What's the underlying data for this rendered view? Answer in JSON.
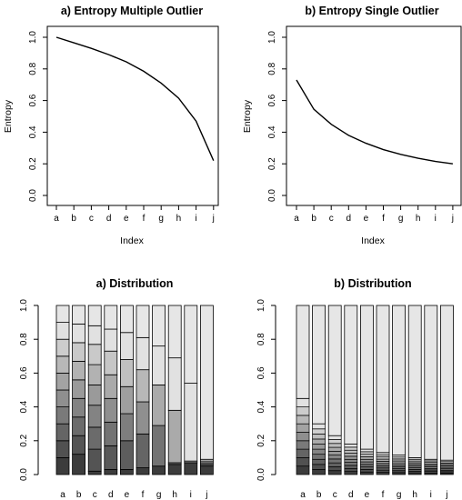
{
  "chart_data": [
    {
      "type": "line",
      "title": "a) Entropy Multiple Outlier",
      "xlabel": "Index",
      "ylabel": "Entropy",
      "categories": [
        "a",
        "b",
        "c",
        "d",
        "e",
        "f",
        "g",
        "h",
        "i",
        "j"
      ],
      "ylim": [
        0,
        1
      ],
      "yticks": [
        "0.0",
        "0.2",
        "0.4",
        "0.6",
        "0.8",
        "1.0"
      ],
      "values": [
        1.0,
        0.965,
        0.93,
        0.89,
        0.845,
        0.785,
        0.71,
        0.615,
        0.47,
        0.22
      ],
      "grid": false
    },
    {
      "type": "line",
      "title": "b) Entropy Single Outlier",
      "xlabel": "Index",
      "ylabel": "Entropy",
      "categories": [
        "a",
        "b",
        "c",
        "d",
        "e",
        "f",
        "g",
        "h",
        "i",
        "j"
      ],
      "ylim": [
        0,
        1
      ],
      "yticks": [
        "0.0",
        "0.2",
        "0.4",
        "0.6",
        "0.8",
        "1.0"
      ],
      "values": [
        0.73,
        0.545,
        0.45,
        0.38,
        0.33,
        0.29,
        0.26,
        0.235,
        0.215,
        0.2
      ],
      "grid": false
    },
    {
      "type": "bar",
      "stacked": true,
      "title": "a) Distribution",
      "categories": [
        "a",
        "b",
        "c",
        "d",
        "e",
        "f",
        "g",
        "h",
        "i",
        "j"
      ],
      "ylim": [
        0,
        1
      ],
      "yticks": [
        "0.0",
        "0.2",
        "0.4",
        "0.6",
        "0.8",
        "1.0"
      ],
      "segment_boundaries": [
        [
          0.1,
          0.2,
          0.3,
          0.4,
          0.5,
          0.6,
          0.7,
          0.8,
          0.9,
          1.0
        ],
        [
          0.12,
          0.23,
          0.34,
          0.45,
          0.56,
          0.67,
          0.78,
          0.89,
          1.0
        ],
        [
          0.02,
          0.15,
          0.28,
          0.41,
          0.53,
          0.65,
          0.77,
          0.88,
          1.0
        ],
        [
          0.03,
          0.17,
          0.31,
          0.45,
          0.59,
          0.73,
          0.86,
          1.0
        ],
        [
          0.03,
          0.2,
          0.36,
          0.52,
          0.68,
          0.84,
          1.0
        ],
        [
          0.04,
          0.24,
          0.43,
          0.62,
          0.81,
          1.0
        ],
        [
          0.05,
          0.29,
          0.53,
          0.76,
          1.0
        ],
        [
          0.06,
          0.07,
          0.38,
          0.69,
          1.0
        ],
        [
          0.07,
          0.08,
          0.54,
          1.0
        ],
        [
          0.05,
          0.06,
          0.07,
          0.08,
          0.09,
          1.0
        ]
      ],
      "grid": false
    },
    {
      "type": "bar",
      "stacked": true,
      "title": "b) Distribution",
      "categories": [
        "a",
        "b",
        "c",
        "d",
        "e",
        "f",
        "g",
        "h",
        "i",
        "j"
      ],
      "ylim": [
        0,
        1
      ],
      "yticks": [
        "0.0",
        "0.2",
        "0.4",
        "0.6",
        "0.8",
        "1.0"
      ],
      "outlier_top": [
        0.45,
        0.3,
        0.23,
        0.18,
        0.15,
        0.13,
        0.115,
        0.1,
        0.09,
        0.085
      ],
      "small_segments": [
        9,
        10,
        10,
        10,
        10,
        10,
        10,
        10,
        10,
        10
      ],
      "grid": false
    }
  ],
  "colors": {
    "line": "#000000",
    "box": "#000000",
    "bar_light": "#e6e6e6",
    "bar_dark": "#444444"
  }
}
